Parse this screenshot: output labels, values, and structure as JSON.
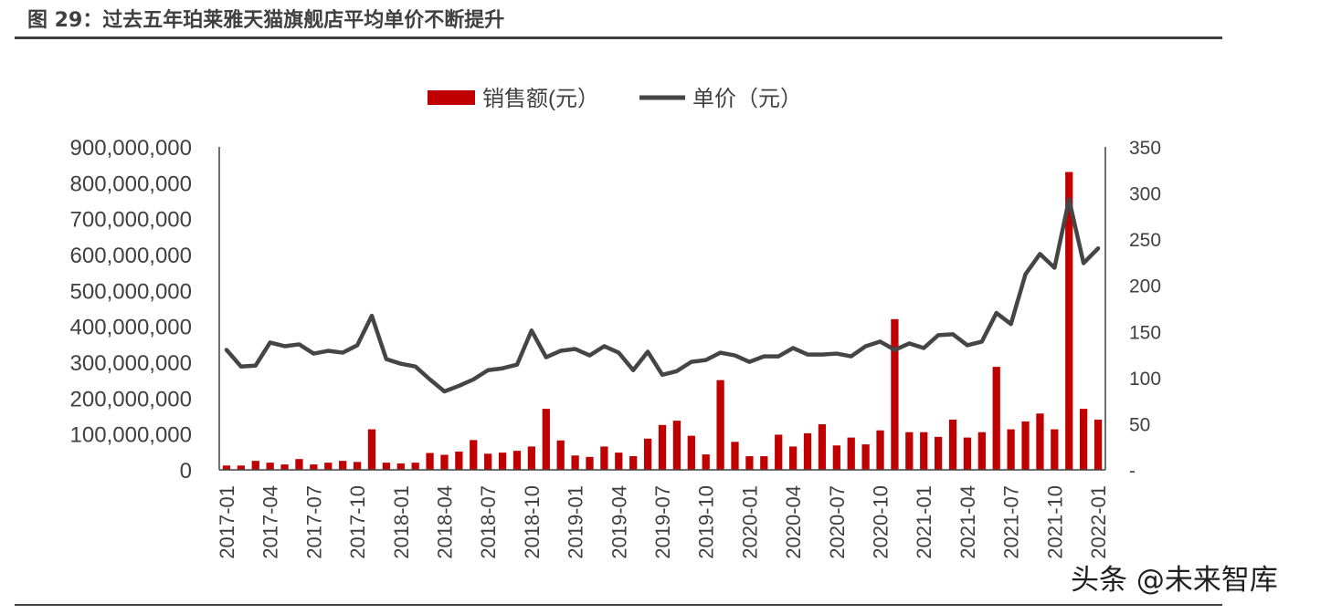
{
  "figure": {
    "title": "图 29：过去五年珀莱雅天猫旗舰店平均单价不断提升",
    "watermark": "头条 @未来智库"
  },
  "colors": {
    "bar": "#c00000",
    "line": "#454545",
    "axis": "#404040",
    "text": "#404040"
  },
  "chart_data": {
    "type": "bar+line",
    "legend_position": "top-center",
    "grid": false,
    "x": [
      "2017-01",
      "2017-02",
      "2017-03",
      "2017-04",
      "2017-05",
      "2017-06",
      "2017-07",
      "2017-08",
      "2017-09",
      "2017-10",
      "2017-11",
      "2017-12",
      "2018-01",
      "2018-02",
      "2018-03",
      "2018-04",
      "2018-05",
      "2018-06",
      "2018-07",
      "2018-08",
      "2018-09",
      "2018-10",
      "2018-11",
      "2018-12",
      "2019-01",
      "2019-02",
      "2019-03",
      "2019-04",
      "2019-05",
      "2019-06",
      "2019-07",
      "2019-08",
      "2019-09",
      "2019-10",
      "2019-11",
      "2019-12",
      "2020-01",
      "2020-02",
      "2020-03",
      "2020-04",
      "2020-05",
      "2020-06",
      "2020-07",
      "2020-08",
      "2020-09",
      "2020-10",
      "2020-11",
      "2020-12",
      "2021-01",
      "2021-02",
      "2021-03",
      "2021-04",
      "2021-05",
      "2021-06",
      "2021-07",
      "2021-08",
      "2021-09",
      "2021-10",
      "2021-11",
      "2021-12",
      "2022-01"
    ],
    "x_tick_labels": [
      "2017-01",
      "2017-04",
      "2017-07",
      "2017-10",
      "2018-01",
      "2018-04",
      "2018-07",
      "2018-10",
      "2019-01",
      "2019-04",
      "2019-07",
      "2019-10",
      "2020-01",
      "2020-04",
      "2020-07",
      "2020-10",
      "2021-01",
      "2021-04",
      "2021-07",
      "2021-10",
      "2022-01"
    ],
    "series": [
      {
        "name": "销售额(元）",
        "type": "bar",
        "axis": "left",
        "values": [
          12000000,
          12000000,
          25000000,
          20000000,
          15000000,
          30000000,
          15000000,
          20000000,
          25000000,
          22000000,
          113000000,
          20000000,
          18000000,
          20000000,
          47000000,
          42000000,
          51000000,
          83000000,
          45000000,
          48000000,
          53000000,
          65000000,
          170000000,
          82000000,
          40000000,
          36000000,
          65000000,
          48000000,
          38000000,
          87000000,
          125000000,
          137000000,
          95000000,
          43000000,
          250000000,
          78000000,
          38000000,
          38000000,
          98000000,
          65000000,
          102000000,
          127000000,
          68000000,
          90000000,
          71000000,
          110000000,
          420000000,
          105000000,
          105000000,
          92000000,
          140000000,
          90000000,
          105000000,
          287000000,
          113000000,
          135000000,
          157000000,
          113000000,
          830000000,
          170000000,
          140000000
        ]
      },
      {
        "name": "单价（元）",
        "type": "line",
        "axis": "right",
        "values": [
          130,
          112,
          113,
          138,
          134,
          136,
          126,
          129,
          127,
          135,
          167,
          120,
          115,
          112,
          98,
          85,
          91,
          98,
          108,
          110,
          114,
          151,
          122,
          129,
          131,
          124,
          134,
          127,
          108,
          128,
          103,
          107,
          117,
          119,
          127,
          124,
          117,
          123,
          123,
          132,
          125,
          125,
          126,
          123,
          134,
          139,
          130,
          137,
          132,
          146,
          147,
          135,
          139,
          170,
          158,
          212,
          234,
          219,
          293,
          224,
          240
        ]
      }
    ],
    "y_left": {
      "min": 0,
      "max": 900000000,
      "ticks": [
        "0",
        "100,000,000",
        "200,000,000",
        "300,000,000",
        "400,000,000",
        "500,000,000",
        "600,000,000",
        "700,000,000",
        "800,000,000",
        "900,000,000"
      ]
    },
    "y_right": {
      "min": 0,
      "max": 350,
      "ticks": [
        "-",
        "50",
        "100",
        "150",
        "200",
        "250",
        "300",
        "350"
      ]
    }
  }
}
